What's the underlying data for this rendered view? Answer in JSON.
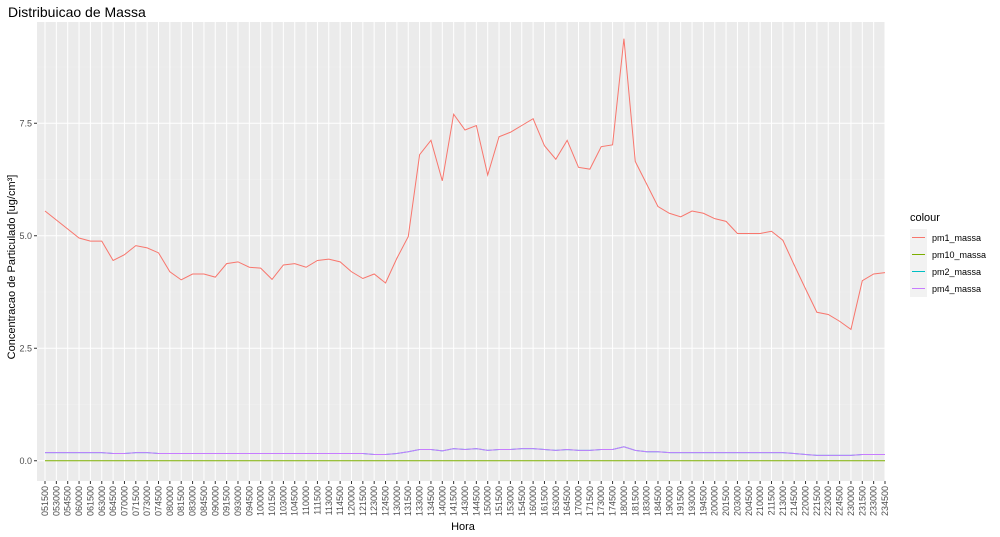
{
  "chart_data": {
    "type": "line",
    "title": "Distribuicao de Massa",
    "xlabel": "Hora",
    "ylabel": "Concentracao de Particulado [ug/cm³]",
    "ylim": [
      -0.45,
      9.75
    ],
    "yticks": [
      0.0,
      2.5,
      5.0,
      7.5
    ],
    "ytick_labels": [
      "0.0",
      "2.5",
      "5.0",
      "7.5"
    ],
    "grid": true,
    "legend_position": "right",
    "legend_title": "colour",
    "x": [
      "051500",
      "053000",
      "054500",
      "060000",
      "061500",
      "063000",
      "064500",
      "070000",
      "071500",
      "073000",
      "074500",
      "080000",
      "081500",
      "083000",
      "084500",
      "090000",
      "091500",
      "093000",
      "094500",
      "100000",
      "101500",
      "103000",
      "104500",
      "110000",
      "111500",
      "113000",
      "114500",
      "120000",
      "121500",
      "123000",
      "124500",
      "130000",
      "131500",
      "133000",
      "134500",
      "140000",
      "141500",
      "143000",
      "144500",
      "150000",
      "151500",
      "153000",
      "154500",
      "160000",
      "161500",
      "163000",
      "164500",
      "170000",
      "171500",
      "173000",
      "174500",
      "180000",
      "181500",
      "183000",
      "184500",
      "190000",
      "191500",
      "193000",
      "194500",
      "200000",
      "201500",
      "203000",
      "204500",
      "210000",
      "211500",
      "213000",
      "214500",
      "220000",
      "221500",
      "223000",
      "224500",
      "230000",
      "231500",
      "233000",
      "234500"
    ],
    "series": [
      {
        "name": "pm1_massa",
        "color": "#F8766D",
        "values": [
          5.55,
          5.35,
          5.15,
          4.95,
          4.88,
          4.88,
          4.45,
          4.58,
          4.78,
          4.73,
          4.62,
          4.2,
          4.02,
          4.15,
          4.15,
          4.08,
          4.38,
          4.42,
          4.3,
          4.28,
          4.03,
          4.35,
          4.38,
          4.3,
          4.45,
          4.48,
          4.42,
          4.2,
          4.05,
          4.15,
          3.95,
          4.5,
          4.98,
          6.8,
          7.12,
          6.22,
          7.7,
          7.35,
          7.45,
          6.35,
          7.2,
          7.3,
          7.45,
          7.6,
          7.0,
          6.7,
          7.12,
          6.52,
          6.48,
          6.98,
          7.02,
          9.38,
          6.65,
          6.15,
          5.65,
          5.5,
          5.42,
          5.55,
          5.5,
          5.38,
          5.32,
          5.05,
          5.05,
          5.05,
          5.1,
          4.9,
          4.35,
          3.82,
          3.3,
          3.25,
          3.1,
          2.92,
          4.0,
          4.15,
          4.18
        ]
      },
      {
        "name": "pm10_massa",
        "color": "#7CAE00",
        "values": [
          0,
          0,
          0,
          0,
          0,
          0,
          0,
          0,
          0,
          0,
          0,
          0,
          0,
          0,
          0,
          0,
          0,
          0,
          0,
          0,
          0,
          0,
          0,
          0,
          0,
          0,
          0,
          0,
          0,
          0,
          0,
          0,
          0,
          0,
          0,
          0,
          0,
          0,
          0,
          0,
          0,
          0,
          0,
          0,
          0,
          0,
          0,
          0,
          0,
          0,
          0,
          0,
          0,
          0,
          0,
          0,
          0,
          0,
          0,
          0,
          0,
          0,
          0,
          0,
          0,
          0,
          0,
          0,
          0,
          0,
          0,
          0,
          0,
          0,
          0
        ]
      },
      {
        "name": "pm2_massa",
        "color": "#00BFC4",
        "values": [
          0.18,
          0.18,
          0.18,
          0.18,
          0.18,
          0.18,
          0.16,
          0.16,
          0.18,
          0.18,
          0.16,
          0.16,
          0.16,
          0.16,
          0.16,
          0.16,
          0.16,
          0.16,
          0.16,
          0.16,
          0.16,
          0.16,
          0.16,
          0.16,
          0.16,
          0.16,
          0.16,
          0.16,
          0.16,
          0.14,
          0.14,
          0.16,
          0.2,
          0.25,
          0.25,
          0.22,
          0.27,
          0.25,
          0.27,
          0.23,
          0.25,
          0.25,
          0.27,
          0.27,
          0.25,
          0.23,
          0.25,
          0.23,
          0.23,
          0.25,
          0.25,
          0.31,
          0.23,
          0.2,
          0.2,
          0.18,
          0.18,
          0.18,
          0.18,
          0.18,
          0.18,
          0.18,
          0.18,
          0.18,
          0.18,
          0.18,
          0.16,
          0.14,
          0.12,
          0.12,
          0.12,
          0.12,
          0.14,
          0.14,
          0.14
        ]
      },
      {
        "name": "pm4_massa",
        "color": "#C77CFF",
        "values": [
          0.18,
          0.18,
          0.18,
          0.18,
          0.18,
          0.18,
          0.16,
          0.16,
          0.18,
          0.18,
          0.16,
          0.16,
          0.16,
          0.16,
          0.16,
          0.16,
          0.16,
          0.16,
          0.16,
          0.16,
          0.16,
          0.16,
          0.16,
          0.16,
          0.16,
          0.16,
          0.16,
          0.16,
          0.16,
          0.14,
          0.14,
          0.16,
          0.2,
          0.25,
          0.25,
          0.22,
          0.27,
          0.25,
          0.27,
          0.23,
          0.25,
          0.25,
          0.27,
          0.27,
          0.25,
          0.23,
          0.25,
          0.23,
          0.23,
          0.25,
          0.25,
          0.31,
          0.23,
          0.2,
          0.2,
          0.18,
          0.18,
          0.18,
          0.18,
          0.18,
          0.18,
          0.18,
          0.18,
          0.18,
          0.18,
          0.18,
          0.16,
          0.14,
          0.12,
          0.12,
          0.12,
          0.12,
          0.14,
          0.14,
          0.14
        ]
      }
    ]
  },
  "colors": {
    "panel_background": "#EBEBEB",
    "major_grid": "#FFFFFF",
    "minor_grid": "#F2F2F2"
  }
}
